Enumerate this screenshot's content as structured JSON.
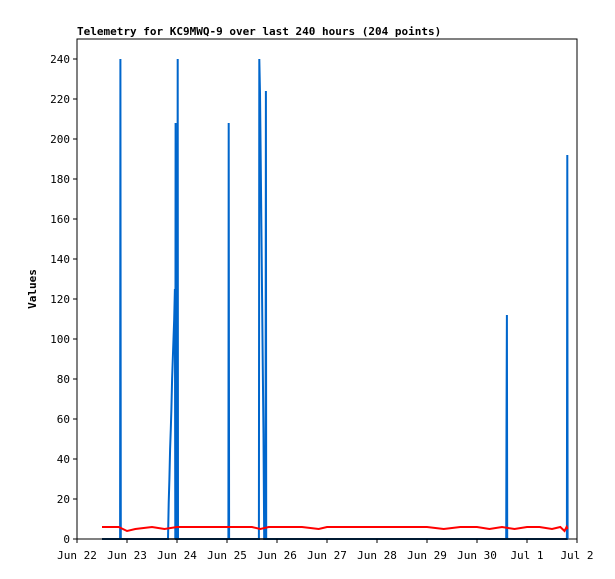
{
  "chart_data": {
    "type": "line",
    "title": "Telemetry for KC9MWQ-9 over last 240 hours (204 points)",
    "xlabel": "",
    "ylabel": "Values",
    "xlim": [
      "2024-06-22T00:00",
      "2024-07-02T00:00"
    ],
    "ylim": [
      0,
      250
    ],
    "x_ticks": [
      "Jun 22",
      "Jun 23",
      "Jun 24",
      "Jun 25",
      "Jun 26",
      "Jun 27",
      "Jun 28",
      "Jun 29",
      "Jun 30",
      "Jul 1",
      "Jul 2"
    ],
    "y_ticks": [
      0,
      20,
      40,
      60,
      80,
      100,
      120,
      140,
      160,
      180,
      200,
      220,
      240
    ],
    "grid": false,
    "series": [
      {
        "color": "#0066cc",
        "points": [
          [
            "2024-06-22T12:00",
            0
          ],
          [
            "2024-06-22T20:40",
            0
          ],
          [
            "2024-06-22T20:50",
            240
          ],
          [
            "2024-06-22T21:00",
            0
          ],
          [
            "2024-06-23T19:40",
            0
          ],
          [
            "2024-06-23T20:00",
            18
          ],
          [
            "2024-06-23T20:20",
            30
          ],
          [
            "2024-06-23T20:40",
            45
          ],
          [
            "2024-06-23T21:00",
            55
          ],
          [
            "2024-06-23T21:20",
            65
          ],
          [
            "2024-06-23T21:40",
            80
          ],
          [
            "2024-06-23T22:00",
            90
          ],
          [
            "2024-06-23T22:20",
            100
          ],
          [
            "2024-06-23T22:40",
            110
          ],
          [
            "2024-06-23T23:00",
            125
          ],
          [
            "2024-06-23T23:10",
            0
          ],
          [
            "2024-06-23T23:20",
            208
          ],
          [
            "2024-06-23T23:30",
            0
          ],
          [
            "2024-06-24T00:10",
            0
          ],
          [
            "2024-06-24T00:20",
            240
          ],
          [
            "2024-06-24T00:30",
            0
          ],
          [
            "2024-06-25T00:40",
            0
          ],
          [
            "2024-06-25T00:50",
            208
          ],
          [
            "2024-06-25T01:00",
            0
          ],
          [
            "2024-06-25T15:20",
            0
          ],
          [
            "2024-06-25T15:30",
            240
          ],
          [
            "2024-06-25T15:50",
            223
          ],
          [
            "2024-06-25T16:10",
            190
          ],
          [
            "2024-06-25T16:30",
            155
          ],
          [
            "2024-06-25T16:50",
            120
          ],
          [
            "2024-06-25T17:10",
            85
          ],
          [
            "2024-06-25T17:30",
            52
          ],
          [
            "2024-06-25T17:50",
            0
          ],
          [
            "2024-06-25T18:30",
            0
          ],
          [
            "2024-06-25T18:40",
            224
          ],
          [
            "2024-06-25T18:50",
            0
          ],
          [
            "2024-06-30T14:00",
            0
          ],
          [
            "2024-06-30T14:10",
            56
          ],
          [
            "2024-06-30T14:20",
            112
          ],
          [
            "2024-06-30T14:30",
            0
          ],
          [
            "2024-07-01T19:10",
            0
          ],
          [
            "2024-07-01T19:20",
            192
          ],
          [
            "2024-07-01T19:30",
            0
          ]
        ]
      },
      {
        "color": "#ff0000",
        "points": [
          [
            "2024-06-22T12:00",
            6
          ],
          [
            "2024-06-22T14:00",
            6
          ],
          [
            "2024-06-22T20:00",
            6
          ],
          [
            "2024-06-23T00:00",
            4
          ],
          [
            "2024-06-23T04:00",
            5
          ],
          [
            "2024-06-23T12:00",
            6
          ],
          [
            "2024-06-23T18:00",
            5
          ],
          [
            "2024-06-24T00:00",
            6
          ],
          [
            "2024-06-25T00:00",
            6
          ],
          [
            "2024-06-25T12:00",
            6
          ],
          [
            "2024-06-25T16:00",
            5
          ],
          [
            "2024-06-25T20:00",
            6
          ],
          [
            "2024-06-26T12:00",
            6
          ],
          [
            "2024-06-26T20:00",
            5
          ],
          [
            "2024-06-27T00:00",
            6
          ],
          [
            "2024-06-28T00:00",
            6
          ],
          [
            "2024-06-29T00:00",
            6
          ],
          [
            "2024-06-29T08:00",
            5
          ],
          [
            "2024-06-29T16:00",
            6
          ],
          [
            "2024-06-30T00:00",
            6
          ],
          [
            "2024-06-30T06:00",
            5
          ],
          [
            "2024-06-30T12:00",
            6
          ],
          [
            "2024-06-30T18:00",
            5
          ],
          [
            "2024-07-01T00:00",
            6
          ],
          [
            "2024-07-01T06:00",
            6
          ],
          [
            "2024-07-01T12:00",
            5
          ],
          [
            "2024-07-01T16:00",
            6
          ],
          [
            "2024-07-01T18:00",
            4
          ],
          [
            "2024-07-01T19:00",
            6
          ],
          [
            "2024-07-01T19:30",
            5
          ]
        ]
      },
      {
        "color": "#000000",
        "points": [
          [
            "2024-06-22T12:00",
            0
          ],
          [
            "2024-07-01T19:30",
            0
          ]
        ]
      }
    ]
  }
}
